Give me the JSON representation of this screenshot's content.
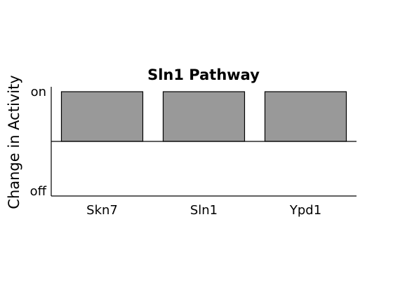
{
  "chart_data": {
    "type": "bar",
    "title": "Sln1 Pathway",
    "xlabel": "",
    "ylabel": "Change in Activity",
    "categories": [
      "Skn7",
      "Sln1",
      "Ypd1"
    ],
    "values": [
      1,
      1,
      1
    ],
    "ylim": [
      -1,
      1
    ],
    "yticks": [
      {
        "value": 1,
        "label": "on"
      },
      {
        "value": -1,
        "label": "off"
      }
    ],
    "bar_color": "#999999",
    "grid": false,
    "legend": "none"
  }
}
